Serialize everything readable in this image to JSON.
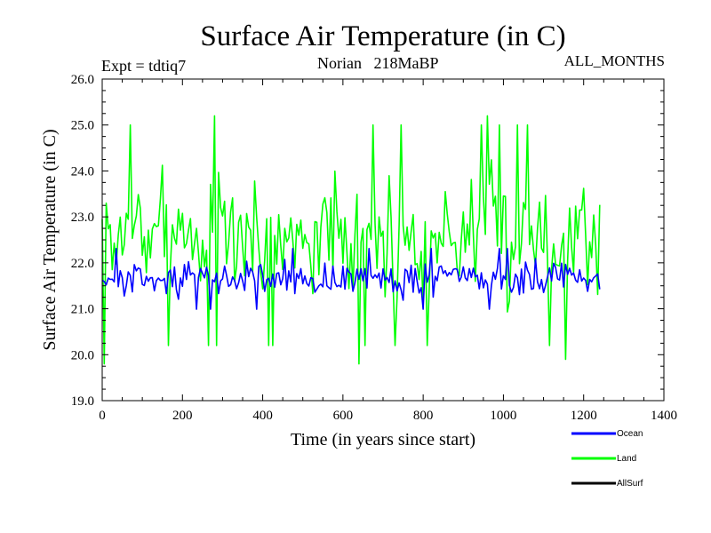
{
  "chart_data": {
    "type": "line",
    "title": "Surface Air Temperature (in C)",
    "experiment_label": "Expt = tdtiq7",
    "subtitle": "Norian   218MaBP",
    "months_label": "ALL_MONTHS",
    "xlabel": "Time (in years since start)",
    "ylabel": "Surface Air Temperature (in C)",
    "xlim": [
      0,
      1400
    ],
    "ylim": [
      19.0,
      26.0
    ],
    "x_ticks": [
      0,
      200,
      400,
      600,
      800,
      1000,
      1200,
      1400
    ],
    "x_tick_labels": [
      "0",
      "200",
      "400",
      "600",
      "800",
      "1000",
      "1200",
      "1400"
    ],
    "y_ticks": [
      19.0,
      20.0,
      21.0,
      22.0,
      23.0,
      24.0,
      25.0,
      26.0
    ],
    "y_tick_labels": [
      "19.0",
      "20.0",
      "21.0",
      "22.0",
      "23.0",
      "24.0",
      "25.0",
      "26.0"
    ],
    "x_minor_step": 50,
    "y_minor_step": 0.25,
    "grid": false,
    "legend_position": "bottom-right, below plot",
    "series": [
      {
        "name": "Land",
        "color": "#00ff00",
        "x_range": [
          0,
          1240
        ],
        "sample_step": 5,
        "mean": 22.6,
        "typical_min": 20.6,
        "typical_max": 24.4,
        "observed_min": 19.8,
        "observed_max": 25.2,
        "peaks": [
          {
            "x": 5,
            "y": 19.8
          },
          {
            "x": 280,
            "y": 25.2
          },
          {
            "x": 640,
            "y": 19.8
          },
          {
            "x": 960,
            "y": 25.2
          },
          {
            "x": 1155,
            "y": 19.9
          }
        ]
      },
      {
        "name": "Ocean",
        "color": "#0000ff",
        "x_range": [
          0,
          1240
        ],
        "sample_step": 5,
        "mean": 21.65,
        "typical_min": 21.1,
        "typical_max": 22.15,
        "observed_min": 20.5,
        "observed_max": 22.45
      },
      {
        "name": "AllSurf",
        "color": "#000000",
        "values": []
      }
    ]
  }
}
